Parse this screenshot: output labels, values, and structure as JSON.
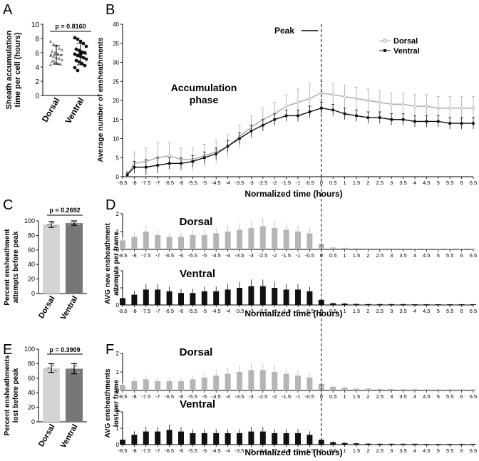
{
  "panels": {
    "A": {
      "letter": "A",
      "ylabel_line1": "Sheath accumulation",
      "ylabel_line2": "time per cell (hours)",
      "pvalue": "p = 0.8160"
    },
    "B": {
      "letter": "B",
      "peak_label": "Peak",
      "phase_line1": "Accumulation",
      "phase_line2": "phase",
      "ylabel": "Average number of ensheathments",
      "xlabel": "Normalized time (hours)"
    },
    "C": {
      "letter": "C",
      "ylabel_line1": "Percent  ensheathment",
      "ylabel_line2": "attempts before peak",
      "pvalue": "p = 0.2692"
    },
    "D": {
      "letter": "D",
      "ylabel_line1": "AVG new ensheathment",
      "ylabel_line2": "attempts per frame",
      "xlabel": "Normalized time (hours)",
      "top_title": "Dorsal",
      "bottom_title": "Ventral"
    },
    "E": {
      "letter": "E",
      "ylabel_line1": "Percent ensheathments",
      "ylabel_line2": "lost before peak",
      "pvalue": "p = 0.3909"
    },
    "F": {
      "letter": "F",
      "ylabel_line1": "AVG ensheathments",
      "ylabel_line2": "lost per frame",
      "xlabel": "Normalized time (hours)",
      "top_title": "Dorsal",
      "bottom_title": "Ventral"
    }
  },
  "chart_data": [
    {
      "panel": "A",
      "type": "scatter",
      "categories": [
        "Dorsal",
        "Ventral"
      ],
      "ylim": [
        0,
        10
      ],
      "yticks": [
        "0",
        "2",
        "4",
        "6",
        "8",
        "10"
      ],
      "series": [
        {
          "name": "Dorsal",
          "color": "#9a9a9a",
          "marker": "triangle",
          "mean": 5.7,
          "sd": 1.3,
          "values": [
            7.6,
            7.2,
            7.0,
            6.6,
            6.4,
            6.2,
            6.0,
            5.9,
            5.7,
            5.6,
            5.5,
            5.3,
            5.2,
            5.0,
            4.8,
            4.6,
            4.5,
            4.4,
            4.3,
            4.9
          ]
        },
        {
          "name": "Ventral",
          "color": "#111111",
          "marker": "circle",
          "mean": 5.8,
          "sd": 1.5,
          "values": [
            8.1,
            7.9,
            7.6,
            7.3,
            6.9,
            6.5,
            6.3,
            6.1,
            6.0,
            5.8,
            5.6,
            5.5,
            5.3,
            5.1,
            4.9,
            4.7,
            4.5,
            4.2,
            3.9,
            3.5,
            5.9
          ]
        }
      ]
    },
    {
      "panel": "B",
      "type": "line",
      "x_range": [
        -8.5,
        6.5
      ],
      "ylim": [
        0,
        40
      ],
      "yticks": [
        "0",
        "5",
        "10",
        "15",
        "20",
        "25",
        "30",
        "35",
        "40"
      ],
      "xticks": [
        "-8.5",
        "-8",
        "-7.5",
        "-7",
        "-6.5",
        "-6",
        "-5.5",
        "-5",
        "-4.5",
        "-4",
        "-3.5",
        "-3",
        "-2.5",
        "-2",
        "-1.5",
        "-1",
        "-0.5",
        "0",
        "0.5",
        "1",
        "1.5",
        "2",
        "2.5",
        "3",
        "3.5",
        "4",
        "4.5",
        "5",
        "5.5",
        "6",
        "6.5"
      ],
      "legend_position": "top-right",
      "series": [
        {
          "name": "Dorsal",
          "color": "#a8a8a8",
          "x": [
            -8.3,
            -8,
            -7.5,
            -7,
            -6.5,
            -6,
            -5.5,
            -5,
            -4.5,
            -4,
            -3.5,
            -3,
            -2.5,
            -2,
            -1.5,
            -1,
            -0.5,
            0,
            0.5,
            1,
            1.5,
            2,
            2.5,
            3,
            3.5,
            4,
            4.5,
            5,
            5.5,
            6,
            6.5
          ],
          "y": [
            0.5,
            3.5,
            4,
            5,
            5.5,
            4.5,
            4.5,
            5.5,
            6.5,
            8,
            10.5,
            13,
            15,
            16.5,
            18.5,
            19.5,
            20.5,
            22,
            21.5,
            21,
            20.5,
            20,
            19.5,
            19,
            19,
            18.5,
            18.5,
            18,
            18,
            18,
            18
          ],
          "err": [
            1,
            3,
            3.5,
            4,
            3.5,
            3,
            3,
            3,
            3,
            3,
            3,
            3,
            3,
            3,
            3,
            3.5,
            4,
            3,
            3,
            3,
            3,
            3,
            3,
            3,
            3,
            3,
            3,
            3,
            3,
            3,
            3
          ]
        },
        {
          "name": "Ventral",
          "color": "#111111",
          "x": [
            -8.3,
            -8,
            -7.5,
            -7,
            -6.5,
            -6,
            -5.5,
            -5,
            -4.5,
            -4,
            -3.5,
            -3,
            -2.5,
            -2,
            -1.5,
            -1,
            -0.5,
            0,
            0.5,
            1,
            1.5,
            2,
            2.5,
            3,
            3.5,
            4,
            4.5,
            5,
            5.5,
            6,
            6.5
          ],
          "y": [
            0.5,
            2.5,
            2.5,
            3,
            3.5,
            3.5,
            4,
            5,
            6,
            8,
            10,
            12,
            13.5,
            15,
            16,
            16,
            17,
            18,
            17.5,
            16.5,
            16,
            15.5,
            15.5,
            15,
            15,
            14.5,
            14.5,
            14.5,
            14,
            14,
            14
          ],
          "err": [
            0.5,
            1.5,
            2,
            2,
            1.5,
            1.5,
            1.5,
            1.5,
            1.5,
            1.5,
            1.5,
            1.5,
            1.5,
            1.5,
            1.5,
            1.5,
            1.5,
            1.5,
            1.5,
            1.5,
            1.5,
            1.5,
            1.5,
            1.5,
            1.5,
            1.5,
            1.5,
            1.5,
            1.5,
            1.5,
            1.5
          ]
        }
      ]
    },
    {
      "panel": "C",
      "type": "bar",
      "categories": [
        "Dorsal",
        "Ventral"
      ],
      "values": [
        95,
        97
      ],
      "err": [
        4,
        3
      ],
      "colors": [
        "#d4d4d4",
        "#777777"
      ],
      "ylim": [
        0,
        100
      ],
      "yticks": [
        "0",
        "20",
        "40",
        "60",
        "80",
        "100"
      ]
    },
    {
      "panel": "D",
      "type": "bar",
      "x_range": [
        -8.5,
        6.5
      ],
      "xticks": [
        "-8.5",
        "-8",
        "-7.5",
        "-7",
        "-6.5",
        "-6",
        "-5.5",
        "-5",
        "-4.5",
        "-4",
        "-3.5",
        "-3",
        "-2.5",
        "-2",
        "-1.5",
        "-1",
        "-0.5",
        "0",
        "0.5",
        "1",
        "1.5",
        "2",
        "2.5",
        "3",
        "3.5",
        "4",
        "4.5",
        "5",
        "5.5",
        "6",
        "6.5"
      ],
      "ylim": [
        0,
        2
      ],
      "yticks": [
        "0",
        "1",
        "2"
      ],
      "series": [
        {
          "name": "Dorsal",
          "color": "#b5b5b5",
          "x": [
            -8.5,
            -8,
            -7.5,
            -7,
            -6.5,
            -6,
            -5.5,
            -5,
            -4.5,
            -4,
            -3.5,
            -3,
            -2.5,
            -2,
            -1.5,
            -1,
            -0.5,
            0,
            0.5,
            1,
            1.5,
            2,
            2.5,
            3,
            3.5,
            4,
            4.5,
            5,
            5.5,
            6,
            6.5
          ],
          "values": [
            0.5,
            0.7,
            1.0,
            0.8,
            0.7,
            0.7,
            0.8,
            0.8,
            0.9,
            1.0,
            1.1,
            1.2,
            1.3,
            1.2,
            1.1,
            1.0,
            0.9,
            0.3,
            0.1,
            0.08,
            0.06,
            0.05,
            0.05,
            0.05,
            0.05,
            0.04,
            0.04,
            0.04,
            0.04,
            0.04,
            0.04
          ]
        },
        {
          "name": "Ventral",
          "color": "#111111",
          "x": [
            -8.5,
            -8,
            -7.5,
            -7,
            -6.5,
            -6,
            -5.5,
            -5,
            -4.5,
            -4,
            -3.5,
            -3,
            -2.5,
            -2,
            -1.5,
            -1,
            -0.5,
            0,
            0.5,
            1,
            1.5,
            2,
            2.5,
            3,
            3.5,
            4,
            4.5,
            5,
            5.5,
            6,
            6.5
          ],
          "values": [
            0.4,
            0.6,
            0.9,
            0.9,
            0.8,
            0.7,
            0.7,
            0.8,
            0.8,
            0.9,
            1.0,
            1.1,
            1.1,
            1.0,
            0.9,
            0.9,
            0.8,
            0.3,
            0.1,
            0.08,
            0.06,
            0.05,
            0.05,
            0.05,
            0.05,
            0.04,
            0.04,
            0.04,
            0.04,
            0.04,
            0.04
          ]
        }
      ]
    },
    {
      "panel": "E",
      "type": "bar",
      "categories": [
        "Dorsal",
        "Ventral"
      ],
      "values": [
        74,
        73
      ],
      "err": [
        6,
        7
      ],
      "colors": [
        "#d4d4d4",
        "#777777"
      ],
      "ylim": [
        0,
        100
      ],
      "yticks": [
        "0",
        "20",
        "40",
        "60",
        "80",
        "100"
      ]
    },
    {
      "panel": "F",
      "type": "bar",
      "x_range": [
        -8.5,
        6.5
      ],
      "xticks": [
        "-8.5",
        "-8",
        "-7.5",
        "-7",
        "-6.5",
        "-6",
        "-5.5",
        "-5",
        "-4.5",
        "-4",
        "-3.5",
        "-3",
        "-2.5",
        "-2",
        "-1.5",
        "-1",
        "-0.5",
        "0",
        "0.5",
        "1",
        "1.5",
        "2",
        "2.5",
        "3",
        "3.5",
        "4",
        "4.5",
        "5",
        "5.5",
        "6",
        "6.5"
      ],
      "ylim": [
        0,
        2
      ],
      "yticks": [
        "0",
        "1",
        "2"
      ],
      "series": [
        {
          "name": "Dorsal",
          "color": "#b5b5b5",
          "x": [
            -8.5,
            -8,
            -7.5,
            -7,
            -6.5,
            -6,
            -5.5,
            -5,
            -4.5,
            -4,
            -3.5,
            -3,
            -2.5,
            -2,
            -1.5,
            -1,
            -0.5,
            0,
            0.5,
            1,
            1.5,
            2,
            2.5,
            3,
            3.5,
            4,
            4.5,
            5,
            5.5,
            6,
            6.5
          ],
          "values": [
            0.3,
            0.5,
            0.6,
            0.5,
            0.5,
            0.5,
            0.6,
            0.7,
            0.8,
            0.9,
            1.0,
            1.1,
            1.1,
            1.0,
            0.9,
            0.8,
            0.7,
            0.35,
            0.2,
            0.15,
            0.1,
            0.1,
            0.08,
            0.08,
            0.07,
            0.07,
            0.06,
            0.06,
            0.06,
            0.06,
            0.06
          ]
        },
        {
          "name": "Ventral",
          "color": "#111111",
          "x": [
            -8.5,
            -8,
            -7.5,
            -7,
            -6.5,
            -6,
            -5.5,
            -5,
            -4.5,
            -4,
            -3.5,
            -3,
            -2.5,
            -2,
            -1.5,
            -1,
            -0.5,
            0,
            0.5,
            1,
            1.5,
            2,
            2.5,
            3,
            3.5,
            4,
            4.5,
            5,
            5.5,
            6,
            6.5
          ],
          "values": [
            0.3,
            0.6,
            0.8,
            0.8,
            0.9,
            0.8,
            0.7,
            0.7,
            0.7,
            0.7,
            0.7,
            0.8,
            0.8,
            0.7,
            0.7,
            0.7,
            0.6,
            0.3,
            0.15,
            0.1,
            0.08,
            0.06,
            0.05,
            0.05,
            0.05,
            0.05,
            0.04,
            0.04,
            0.04,
            0.04,
            0.04
          ]
        }
      ]
    }
  ]
}
